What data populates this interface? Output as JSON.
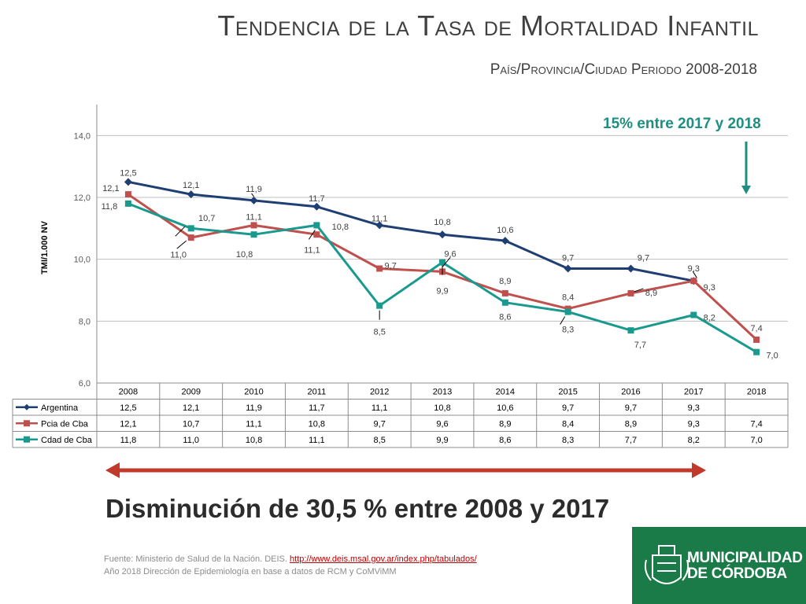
{
  "header": {
    "title": "Tendencia de la Tasa de Mortalidad Infantil",
    "subtitle": "País/Provincia/Ciudad Periodo 2008-2018"
  },
  "annotations": {
    "percent_2017_2018": "15% entre 2017 y 2018",
    "decrease": "Disminución de 30,5 % entre 2008 y 2017"
  },
  "footer": {
    "source_prefix": "Fuente: Ministerio de Salud de la Nación. DEIS. ",
    "source_link": "http://www.deis.msal.gov.ar/index.php/tabulados/",
    "source_line2": "Año 2018 Dirección de Epidemiología en base a datos de RCM y CoMViMM"
  },
  "logo": {
    "line1": "MUNICIPALIDAD",
    "line2": "DE CÓRDOBA",
    "background": "#1a7a48"
  },
  "chart_data": {
    "type": "line",
    "ylabel": "TMI/1.000 NV",
    "xlabel": "",
    "ylim": [
      6.0,
      15.0
    ],
    "yticks": [
      "6,0",
      "8,0",
      "10,0",
      "12,0",
      "14,0"
    ],
    "ytick_values": [
      6,
      8,
      10,
      12,
      14
    ],
    "grid": true,
    "categories": [
      "2008",
      "2009",
      "2010",
      "2011",
      "2012",
      "2013",
      "2014",
      "2015",
      "2016",
      "2017",
      "2018"
    ],
    "series": [
      {
        "name": "Argentina",
        "color": "#1f3f73",
        "marker": "diamond",
        "values": [
          12.5,
          12.1,
          11.9,
          11.7,
          11.1,
          10.8,
          10.6,
          9.7,
          9.7,
          9.3,
          null
        ],
        "labels": [
          "12,5",
          "12,1",
          "11,9",
          "11,7",
          "11,1",
          "10,8",
          "10,6",
          "9,7",
          "9,7",
          "9,3",
          ""
        ]
      },
      {
        "name": "Pcia de Cba",
        "color": "#c0504d",
        "marker": "square",
        "values": [
          12.1,
          10.7,
          11.1,
          10.8,
          9.7,
          9.6,
          8.9,
          8.4,
          8.9,
          9.3,
          7.4
        ],
        "labels": [
          "12,1",
          "10,7",
          "11,1",
          "10,8",
          "9,7",
          "9,6",
          "8,9",
          "8,4",
          "8,9",
          "9,3",
          "7,4"
        ]
      },
      {
        "name": "Cdad de Cba",
        "color": "#1a9a8e",
        "marker": "square",
        "values": [
          11.8,
          11.0,
          10.8,
          11.1,
          8.5,
          9.9,
          8.6,
          8.3,
          7.7,
          8.2,
          7.0
        ],
        "labels": [
          "11,8",
          "11,0",
          "10,8",
          "11,1",
          "8,5",
          "9,9",
          "8,6",
          "8,3",
          "7,7",
          "8,2",
          "7,0"
        ]
      }
    ],
    "arrow_colors": {
      "down_arrow": "#1e8f7f",
      "range_arrow": "#c0392b"
    }
  }
}
